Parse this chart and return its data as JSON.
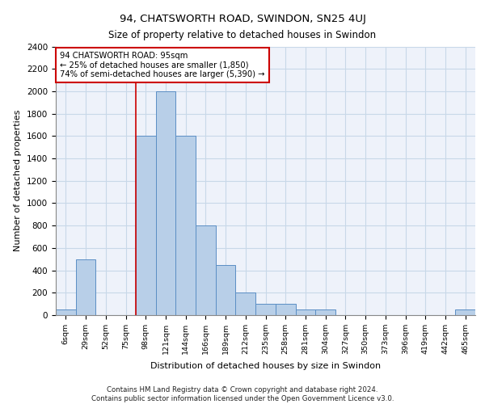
{
  "title1": "94, CHATSWORTH ROAD, SWINDON, SN25 4UJ",
  "title2": "Size of property relative to detached houses in Swindon",
  "xlabel": "Distribution of detached houses by size in Swindon",
  "ylabel": "Number of detached properties",
  "footer1": "Contains HM Land Registry data © Crown copyright and database right 2024.",
  "footer2": "Contains public sector information licensed under the Open Government Licence v3.0.",
  "annotation_title": "94 CHATSWORTH ROAD: 95sqm",
  "annotation_line1": "← 25% of detached houses are smaller (1,850)",
  "annotation_line2": "74% of semi-detached houses are larger (5,390) →",
  "categories": [
    "6sqm",
    "29sqm",
    "52sqm",
    "75sqm",
    "98sqm",
    "121sqm",
    "144sqm",
    "166sqm",
    "189sqm",
    "212sqm",
    "235sqm",
    "258sqm",
    "281sqm",
    "304sqm",
    "327sqm",
    "350sqm",
    "373sqm",
    "396sqm",
    "419sqm",
    "442sqm",
    "465sqm"
  ],
  "values": [
    50,
    500,
    0,
    0,
    1600,
    2000,
    1600,
    800,
    450,
    200,
    100,
    100,
    50,
    50,
    0,
    0,
    0,
    0,
    0,
    0,
    50
  ],
  "bar_color": "#b8cfe8",
  "bar_edge_color": "#5b8ec4",
  "grid_color": "#c8d8e8",
  "background_color": "#eef2fa",
  "red_line_x": 3.5,
  "red_line_color": "#cc0000",
  "annotation_box_color": "#cc0000",
  "ylim": [
    0,
    2400
  ],
  "yticks": [
    0,
    200,
    400,
    600,
    800,
    1000,
    1200,
    1400,
    1600,
    1800,
    2000,
    2200,
    2400
  ]
}
